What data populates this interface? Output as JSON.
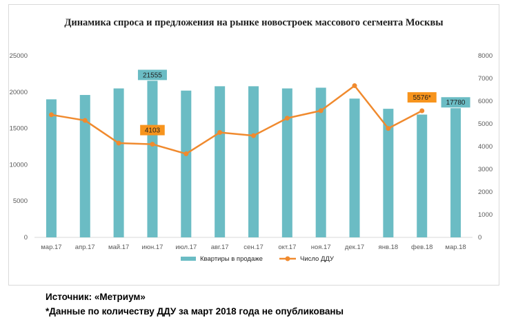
{
  "chart_data": {
    "type": "bar+line",
    "title": "Динамика спроса и предложения на рынке новостроек массового сегмента Москвы",
    "categories": [
      "мар.17",
      "апр.17",
      "май.17",
      "июн.17",
      "июл.17",
      "авг.17",
      "сен.17",
      "окт.17",
      "ноя.17",
      "дек.17",
      "янв.18",
      "фев.18",
      "мар.18"
    ],
    "series": [
      {
        "name": "Квартиры в продаже",
        "type": "bar",
        "axis": "left",
        "color": "#6bbcc4",
        "values": [
          19000,
          19600,
          20500,
          21555,
          20200,
          20800,
          20800,
          20500,
          20600,
          19100,
          17700,
          16900,
          17780
        ]
      },
      {
        "name": "Число ДДУ",
        "type": "line",
        "axis": "right",
        "color": "#f08a2e",
        "values": [
          5400,
          5150,
          4150,
          4103,
          3680,
          4620,
          4480,
          5250,
          5580,
          6680,
          4800,
          5576,
          null
        ]
      }
    ],
    "ylim_left": [
      0,
      25000
    ],
    "yticks_left": [
      "0",
      "5000",
      "10000",
      "15000",
      "20000",
      "25000"
    ],
    "ylim_right": [
      0,
      8000
    ],
    "yticks_right": [
      "0",
      "1000",
      "2000",
      "3000",
      "4000",
      "5000",
      "6000",
      "7000",
      "8000"
    ],
    "data_labels": [
      {
        "series": 0,
        "index": 3,
        "text": "21555"
      },
      {
        "series": 0,
        "index": 12,
        "text": "17780"
      },
      {
        "series": 1,
        "index": 3,
        "text": "4103"
      },
      {
        "series": 1,
        "index": 11,
        "text": "5576*"
      }
    ],
    "legend": "bottom",
    "grid": false
  },
  "footer": {
    "source": "Источник: «Метриум»",
    "note": "*Данные по количеству ДДУ за март 2018 года не опубликованы"
  }
}
